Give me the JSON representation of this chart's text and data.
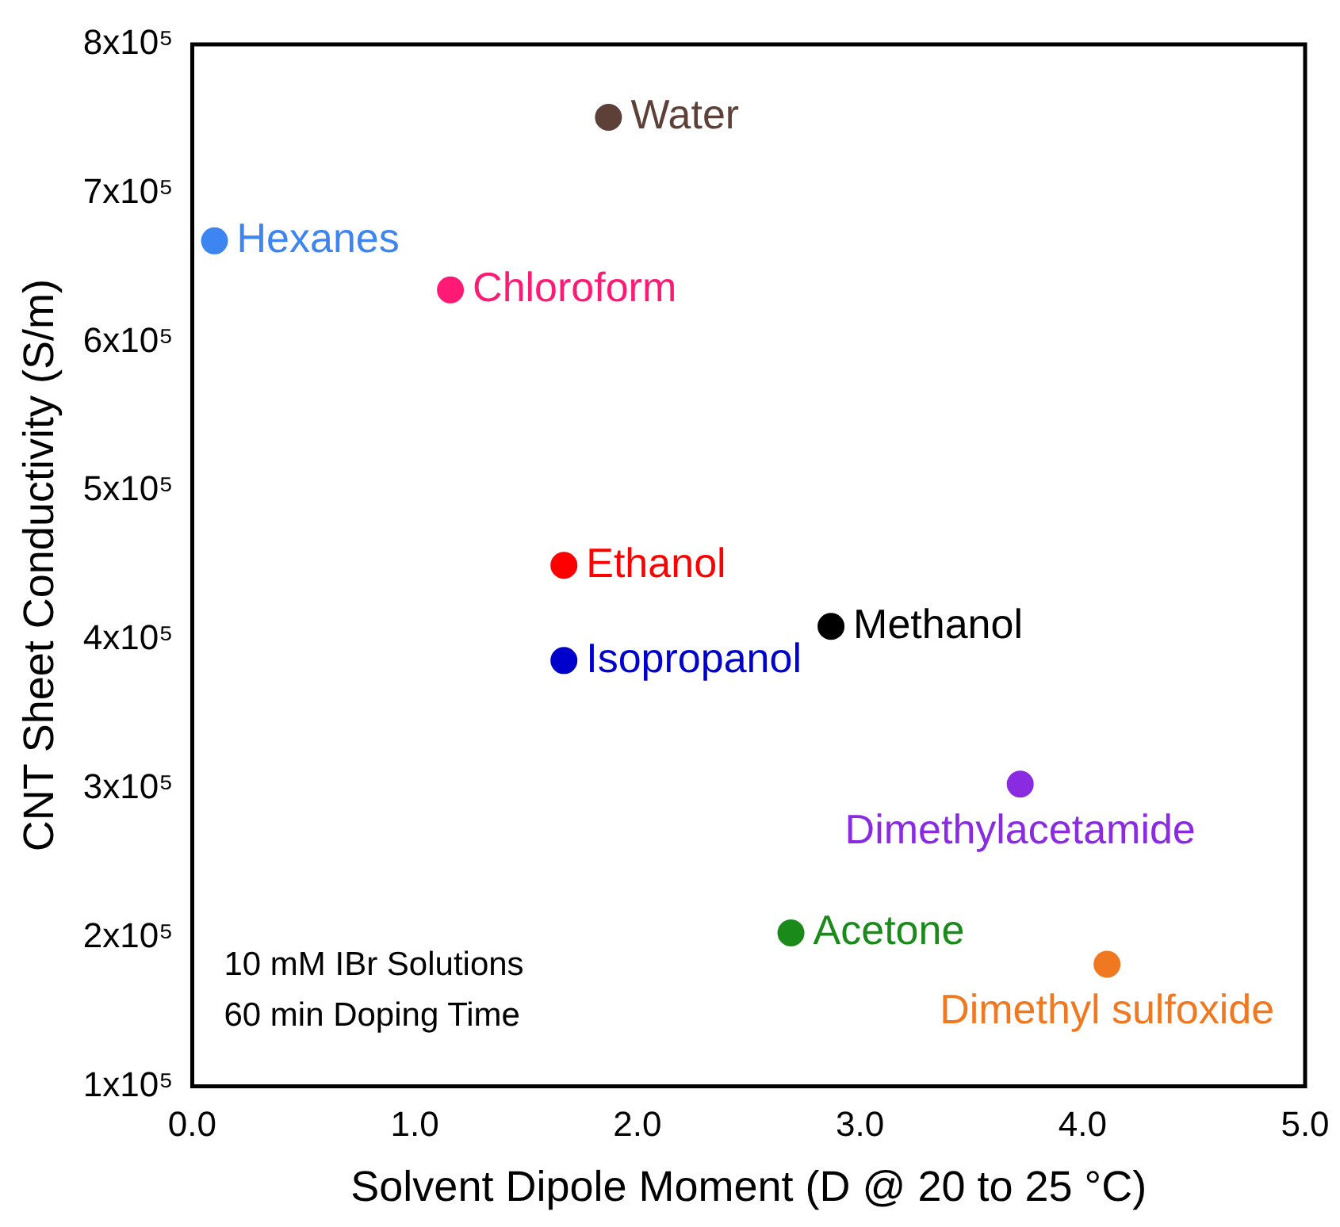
{
  "chart_data": {
    "type": "scatter",
    "xlabel": "Solvent Dipole Moment (D @ 20 to 25 °C)",
    "ylabel": "CNT Sheet Conductivity (S/m)",
    "xlim": [
      0,
      5
    ],
    "xticks": [
      {
        "value": 0,
        "label": "0.0"
      },
      {
        "value": 1,
        "label": "1.0"
      },
      {
        "value": 2,
        "label": "2.0"
      },
      {
        "value": 3,
        "label": "3.0"
      },
      {
        "value": 4,
        "label": "4.0"
      },
      {
        "value": 5,
        "label": "5.0"
      }
    ],
    "ylim": [
      100000,
      800000
    ],
    "yticks": [
      {
        "value": 100000,
        "label": "1x10⁵"
      },
      {
        "value": 200000,
        "label": "2x10⁵"
      },
      {
        "value": 300000,
        "label": "3x10⁵"
      },
      {
        "value": 400000,
        "label": "4x10⁵"
      },
      {
        "value": 500000,
        "label": "5x10⁵"
      },
      {
        "value": 600000,
        "label": "6x10⁵"
      },
      {
        "value": 700000,
        "label": "7x10⁵"
      },
      {
        "value": 800000,
        "label": "8x10⁵"
      }
    ],
    "grid": false,
    "legend": false,
    "marker": "circle",
    "series": [
      {
        "name": "Water",
        "color": "#5d4037",
        "x": [
          1.87
        ],
        "values": [
          751000
        ]
      },
      {
        "name": "Hexanes",
        "color": "#3d85f0",
        "x": [
          0.1
        ],
        "values": [
          668000
        ]
      },
      {
        "name": "Chloroform",
        "color": "#ff1a75",
        "x": [
          1.16
        ],
        "values": [
          635000
        ]
      },
      {
        "name": "Ethanol",
        "color": "#ff0000",
        "x": [
          1.67
        ],
        "values": [
          450000
        ]
      },
      {
        "name": "Methanol",
        "color": "#000000",
        "x": [
          2.87
        ],
        "values": [
          409000
        ]
      },
      {
        "name": "Isopropanol",
        "color": "#0000cc",
        "x": [
          1.67
        ],
        "values": [
          386000
        ]
      },
      {
        "name": "Dimethylacetamide",
        "color": "#8a2be2",
        "x": [
          3.72
        ],
        "values": [
          303000
        ]
      },
      {
        "name": "Acetone",
        "color": "#1a8a1a",
        "x": [
          2.69
        ],
        "values": [
          203000
        ]
      },
      {
        "name": "Dimethyl sulfoxide",
        "color": "#f07820",
        "x": [
          4.11
        ],
        "values": [
          182000
        ]
      }
    ],
    "annotations": [
      "10 mM IBr Solutions",
      "60 min Doping Time"
    ]
  }
}
